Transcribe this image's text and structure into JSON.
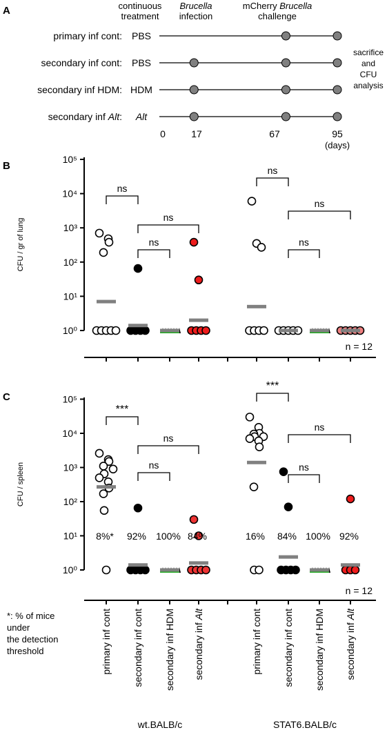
{
  "panelA": {
    "label": "A",
    "header_continuous": [
      "continuous",
      "treatment"
    ],
    "header_infection": {
      "italic": "Brucella",
      "plain": "infection"
    },
    "header_challenge": {
      "line1": "mCherry",
      "italic": "Brucella",
      "plain": "challenge"
    },
    "rows": [
      {
        "label": "primary inf cont:",
        "label_italic": "",
        "treatment": "PBS",
        "treatment_italic": false,
        "events": [
          67,
          95
        ]
      },
      {
        "label": "secondary inf cont:",
        "label_italic": "",
        "treatment": "PBS",
        "treatment_italic": false,
        "events": [
          17,
          67,
          95
        ]
      },
      {
        "label": "secondary inf HDM:",
        "label_italic": "",
        "treatment": "HDM",
        "treatment_italic": false,
        "events": [
          17,
          67,
          95
        ]
      },
      {
        "label": "secondary inf ",
        "label_italic": "Alt",
        "label_suffix": ":",
        "treatment": "Alt",
        "treatment_italic": true,
        "events": [
          17,
          67,
          95
        ]
      }
    ],
    "timepoints": [
      "0",
      "17",
      "67",
      "95"
    ],
    "time_unit": "(days)",
    "side_note": [
      "sacrifice",
      "and",
      "CFU",
      "analysis"
    ]
  },
  "chart_data": [
    {
      "type": "scatter",
      "panel": "B",
      "ylabel": "CFU / gr of lung",
      "yscale": "log",
      "ylim": [
        1,
        100000
      ],
      "yticks": [
        "10⁰",
        "10¹",
        "10²",
        "10³",
        "10⁴",
        "10⁵"
      ],
      "annotation": "n = 12",
      "groups": [
        {
          "strain": "wt.BALB/c",
          "category": "primary inf cont",
          "color": "#ffffff",
          "points": [
            700,
            480,
            380,
            190,
            1,
            1,
            1,
            1,
            1
          ],
          "mean": 7
        },
        {
          "strain": "wt.BALB/c",
          "category": "secondary inf cont",
          "color": "#000000",
          "points": [
            65,
            1,
            1,
            1,
            1
          ],
          "mean": 1.4
        },
        {
          "strain": "wt.BALB/c",
          "category": "secondary inf HDM",
          "color": "#22aa22",
          "points": [
            1,
            1,
            1,
            1,
            1
          ],
          "mean": 1
        },
        {
          "strain": "wt.BALB/c",
          "category": "secondary inf Alt",
          "color": "#ee1c1c",
          "points": [
            380,
            30,
            1,
            1,
            1,
            1
          ],
          "mean": 2
        },
        {
          "strain": "STAT6.BALB/c",
          "category": "primary inf cont",
          "color": "#ffffff",
          "points": [
            6000,
            350,
            270,
            1,
            1,
            1,
            1
          ],
          "mean": 5
        },
        {
          "strain": "STAT6.BALB/c",
          "category": "secondary inf cont",
          "color": "#ffffff",
          "points": [
            1,
            1,
            1,
            1,
            1
          ],
          "mean": 1
        },
        {
          "strain": "STAT6.BALB/c",
          "category": "secondary inf HDM",
          "color": "#22aa22",
          "points": [
            1,
            1,
            1,
            1,
            1
          ],
          "mean": 1
        },
        {
          "strain": "STAT6.BALB/c",
          "category": "secondary inf Alt",
          "color": "#f08080",
          "points": [
            1,
            1,
            1,
            1,
            1
          ],
          "mean": 1
        }
      ],
      "brackets": [
        {
          "from": 0,
          "to": 1,
          "label": "ns"
        },
        {
          "from": 1,
          "to": 3,
          "label": "ns"
        },
        {
          "from": 1,
          "to": 2,
          "label": "ns"
        },
        {
          "from": 4,
          "to": 5,
          "label": "ns"
        },
        {
          "from": 5,
          "to": 7,
          "label": "ns"
        },
        {
          "from": 5,
          "to": 6,
          "label": "ns"
        }
      ]
    },
    {
      "type": "scatter",
      "panel": "C",
      "ylabel": "CFU /  spleen",
      "yscale": "log",
      "ylim": [
        1,
        100000
      ],
      "yticks": [
        "10⁰",
        "10¹",
        "10²",
        "10³",
        "10⁴",
        "10⁵"
      ],
      "annotation": "n = 12",
      "categories": [
        "primary inf cont",
        "secondary inf cont",
        "secondary inf HDM",
        "secondary inf Alt",
        "primary inf cont",
        "secondary inf cont",
        "secondary inf HDM",
        "secondary inf Alt"
      ],
      "strains": [
        "wt.BALB/c",
        "STAT6.BALB/c"
      ],
      "groups": [
        {
          "strain": "wt.BALB/c",
          "category": "primary inf cont",
          "color": "#ffffff",
          "points": [
            2600,
            1700,
            1500,
            1100,
            650,
            900,
            500,
            380,
            250,
            170,
            55,
            1
          ],
          "mean": 270,
          "pct": "8%*"
        },
        {
          "strain": "wt.BALB/c",
          "category": "secondary inf cont",
          "color": "#000000",
          "points": [
            65,
            1,
            1,
            1,
            1
          ],
          "mean": 1.4,
          "pct": "92%"
        },
        {
          "strain": "wt.BALB/c",
          "category": "secondary inf HDM",
          "color": "#22aa22",
          "points": [
            1,
            1,
            1,
            1,
            1
          ],
          "mean": 1,
          "pct": "100%"
        },
        {
          "strain": "wt.BALB/c",
          "category": "secondary inf Alt",
          "color": "#ee3333",
          "points": [
            30,
            10,
            1,
            1,
            1,
            1
          ],
          "mean": 1.6,
          "pct": "84%"
        },
        {
          "strain": "STAT6.BALB/c",
          "category": "primary inf cont",
          "color": "#ffffff",
          "points": [
            30000,
            15000,
            10000,
            9500,
            8000,
            8000,
            7000,
            6000,
            4000,
            270,
            1,
            1
          ],
          "mean": 1400,
          "pct": "16%"
        },
        {
          "strain": "STAT6.BALB/c",
          "category": "secondary inf cont",
          "color": "#000000",
          "points": [
            750,
            70,
            1,
            1,
            1,
            1
          ],
          "mean": 2.4,
          "pct": "84%"
        },
        {
          "strain": "STAT6.BALB/c",
          "category": "secondary inf HDM",
          "color": "#22aa22",
          "points": [
            1,
            1,
            1,
            1,
            1
          ],
          "mean": 1,
          "pct": "100%"
        },
        {
          "strain": "STAT6.BALB/c",
          "category": "secondary inf Alt",
          "color": "#ee1c1c",
          "points": [
            120,
            1,
            1,
            1
          ],
          "mean": 1.4,
          "pct": "92%"
        }
      ],
      "brackets": [
        {
          "from": 0,
          "to": 1,
          "label": "***"
        },
        {
          "from": 1,
          "to": 3,
          "label": "ns"
        },
        {
          "from": 1,
          "to": 2,
          "label": "ns"
        },
        {
          "from": 4,
          "to": 5,
          "label": "***"
        },
        {
          "from": 5,
          "to": 7,
          "label": "ns"
        },
        {
          "from": 5,
          "to": 6,
          "label": "ns"
        }
      ]
    }
  ],
  "panelB": {
    "label": "B"
  },
  "panelC": {
    "label": "C"
  },
  "footnote": [
    "*: % of mice",
    "under",
    "the detection",
    "threshold"
  ],
  "xaxis": {
    "labels": [
      "primary inf cont",
      "secondary inf cont",
      "secondary inf HDM",
      "secondary inf ",
      "primary inf cont",
      "secondary inf cont",
      "secondary inf HDM",
      "secondary inf "
    ],
    "italic_suffix": "Alt",
    "strains": [
      "wt.BALB/c",
      "STAT6.BALB/c"
    ]
  }
}
